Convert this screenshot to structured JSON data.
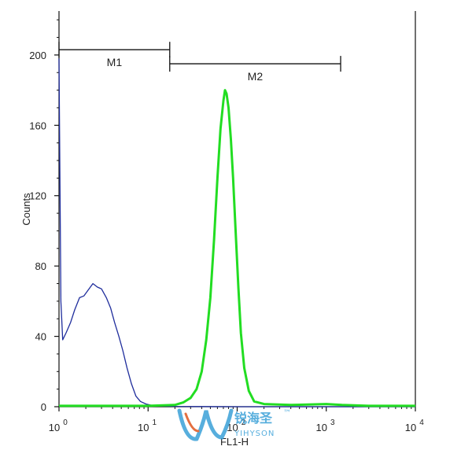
{
  "chart_data": {
    "type": "line",
    "title": "",
    "xlabel": "FL1-H",
    "ylabel": "Counts",
    "x_scale": "log",
    "xlim": [
      1,
      10000
    ],
    "ylim": [
      0,
      225
    ],
    "grid": false,
    "x_ticks": [
      {
        "value": 1,
        "base": "10",
        "exp": "0"
      },
      {
        "value": 10,
        "base": "10",
        "exp": "1"
      },
      {
        "value": 100,
        "base": "10",
        "exp": "2"
      },
      {
        "value": 1000,
        "base": "10",
        "exp": "3"
      },
      {
        "value": 10000,
        "base": "10",
        "exp": "4"
      }
    ],
    "y_ticks": [
      0,
      40,
      80,
      120,
      160,
      200
    ],
    "series": [
      {
        "color": "#1f2d9c",
        "points": [
          [
            1.0,
            198
          ],
          [
            1.02,
            140
          ],
          [
            1.05,
            60
          ],
          [
            1.1,
            38
          ],
          [
            1.2,
            42
          ],
          [
            1.35,
            48
          ],
          [
            1.5,
            55
          ],
          [
            1.7,
            62
          ],
          [
            1.9,
            63
          ],
          [
            2.1,
            66
          ],
          [
            2.4,
            70
          ],
          [
            2.7,
            68
          ],
          [
            3.0,
            67
          ],
          [
            3.4,
            62
          ],
          [
            3.8,
            56
          ],
          [
            4.2,
            48
          ],
          [
            4.7,
            40
          ],
          [
            5.2,
            32
          ],
          [
            5.8,
            22
          ],
          [
            6.5,
            13
          ],
          [
            7.3,
            6
          ],
          [
            8.2,
            3
          ],
          [
            9.5,
            1.5
          ],
          [
            11,
            0.8
          ],
          [
            14,
            0.4
          ],
          [
            20,
            0.2
          ],
          [
            40,
            0.1
          ],
          [
            100,
            0
          ],
          [
            1000,
            0
          ],
          [
            10000,
            0
          ]
        ]
      },
      {
        "color": "#22dd22",
        "points": [
          [
            1.0,
            0.5
          ],
          [
            5,
            0.5
          ],
          [
            10,
            0.5
          ],
          [
            20,
            1
          ],
          [
            25,
            2.5
          ],
          [
            30,
            5
          ],
          [
            35,
            10
          ],
          [
            40,
            20
          ],
          [
            45,
            38
          ],
          [
            50,
            62
          ],
          [
            55,
            95
          ],
          [
            60,
            130
          ],
          [
            65,
            158
          ],
          [
            70,
            174
          ],
          [
            73,
            180
          ],
          [
            76,
            178
          ],
          [
            80,
            170
          ],
          [
            85,
            152
          ],
          [
            90,
            130
          ],
          [
            96,
            100
          ],
          [
            103,
            68
          ],
          [
            110,
            42
          ],
          [
            120,
            22
          ],
          [
            135,
            9
          ],
          [
            155,
            3
          ],
          [
            200,
            1.5
          ],
          [
            400,
            1
          ],
          [
            1000,
            1.5
          ],
          [
            1500,
            1
          ],
          [
            3000,
            0.5
          ],
          [
            10000,
            0.5
          ]
        ]
      }
    ],
    "markers": [
      {
        "label": "M1",
        "x_start": 1,
        "x_end": 17.5,
        "y": 203
      },
      {
        "label": "M2",
        "x_start": 17.5,
        "x_end": 1450,
        "y": 195
      }
    ]
  },
  "watermark": {
    "text": "锐海圣",
    "sub": "YIHYSON",
    "tm": "™"
  }
}
